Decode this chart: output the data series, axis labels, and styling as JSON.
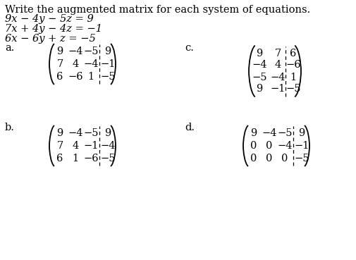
{
  "title_line": "Write the augmented matrix for each system of equations.",
  "equations": [
    "9x − 4y − 5z = 9",
    "7x + 4y − 4z = −1",
    "6x − 6y + z = −5"
  ],
  "label_a": "a.",
  "label_b": "b.",
  "label_c": "c.",
  "label_d": "d.",
  "matrix_a": [
    [
      "9",
      "−4",
      "−5",
      "9"
    ],
    [
      "7",
      "4",
      "−4",
      "−1"
    ],
    [
      "6",
      "−6",
      "1",
      "−5"
    ]
  ],
  "matrix_b": [
    [
      "9",
      "−4",
      "−5",
      "9"
    ],
    [
      "7",
      "4",
      "−1",
      "−4"
    ],
    [
      "6",
      "1",
      "−6",
      "−5"
    ]
  ],
  "matrix_c": [
    [
      "9",
      "7",
      "6"
    ],
    [
      "−4",
      "4",
      "−6"
    ],
    [
      "−5",
      "−4",
      "1"
    ],
    [
      "9",
      "−1",
      "−5"
    ]
  ],
  "matrix_d": [
    [
      "9",
      "−4",
      "−5",
      "9"
    ],
    [
      "0",
      "0",
      "−4",
      "−1"
    ],
    [
      "0",
      "0",
      "0",
      "−5"
    ]
  ],
  "bg_color": "#ffffff",
  "text_color": "#000000",
  "font_size_title": 10.5,
  "font_size_eq": 10.5,
  "font_size_matrix": 10.5,
  "font_size_label": 10.5
}
